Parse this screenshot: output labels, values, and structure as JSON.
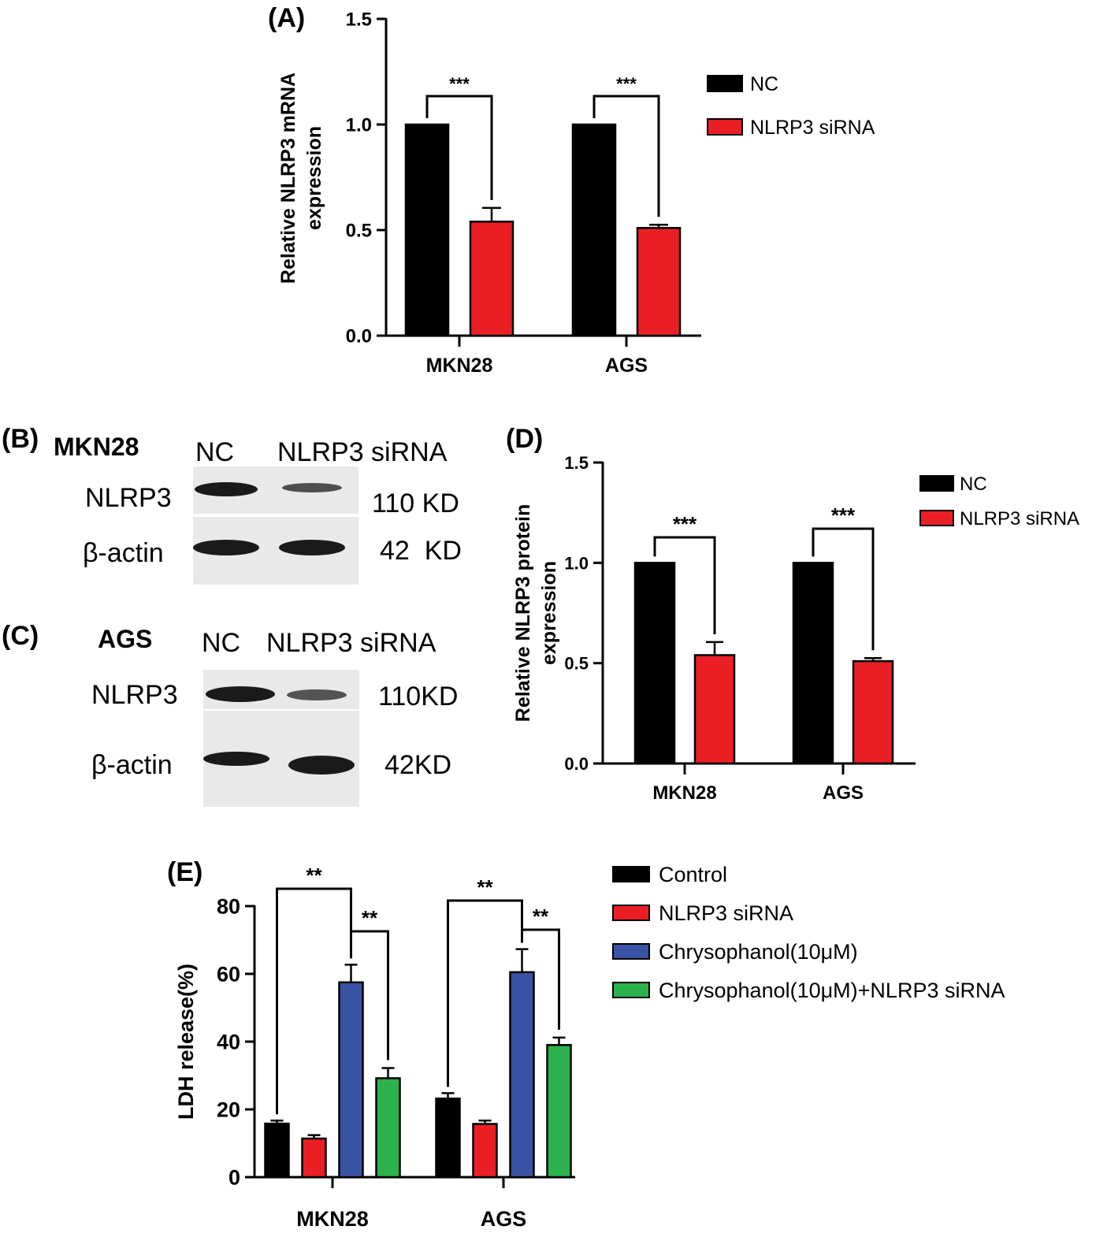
{
  "colors": {
    "black": "#000000",
    "red": "#ea1f26",
    "blue": "#3a53a4",
    "green": "#2bb24c",
    "blot_background": "#e9e9e9",
    "band": "#1a1a1a"
  },
  "panels": {
    "a": "(A)",
    "b": "(B)",
    "c": "(C)",
    "d": "(D)",
    "e": "(E)"
  },
  "blots": {
    "b": {
      "cell_line": "MKN28",
      "lane_labels": [
        "NC",
        "NLRP3 siRNA"
      ],
      "rows": [
        {
          "name": "NLRP3",
          "size": "110 KD",
          "intensities": [
            1.0,
            0.55
          ]
        },
        {
          "name": "β-actin",
          "size": "42  KD",
          "intensities": [
            1.0,
            1.0
          ]
        }
      ]
    },
    "c": {
      "cell_line": "AGS",
      "lane_labels": [
        "NC",
        "NLRP3 siRNA"
      ],
      "rows": [
        {
          "name": "NLRP3",
          "size": "110KD",
          "intensities": [
            1.0,
            0.5
          ]
        },
        {
          "name": "β-actin",
          "size": "42KD",
          "intensities": [
            0.95,
            1.0
          ]
        }
      ]
    }
  },
  "chart_data": [
    {
      "panel": "A",
      "type": "bar",
      "title": "",
      "xlabel": "",
      "ylabel": "Relative NLRP3 mRNA expression",
      "ylabel_lines": [
        "Relative NLRP3 mRNA",
        "expression"
      ],
      "ylim": [
        0,
        1.5
      ],
      "yticks": [
        "0.0",
        "0.5",
        "1.0",
        "1.5"
      ],
      "categories": [
        "MKN28",
        "AGS"
      ],
      "series": [
        {
          "name": "NC",
          "values": [
            1.0,
            1.0
          ],
          "errors": [
            0,
            0
          ]
        },
        {
          "name": "NLRP3 siRNA",
          "values": [
            0.54,
            0.51
          ],
          "errors": [
            0.065,
            0.015
          ]
        }
      ],
      "significance": [
        {
          "category": "MKN28",
          "label": "***"
        },
        {
          "category": "AGS",
          "label": "***"
        }
      ],
      "legend_position": "right",
      "grid": false
    },
    {
      "panel": "D",
      "type": "bar",
      "title": "",
      "xlabel": "",
      "ylabel": "Relative NLRP3 protein expression",
      "ylabel_lines": [
        "Relative NLRP3 protein",
        "expression"
      ],
      "ylim": [
        0,
        1.5
      ],
      "yticks": [
        "0.0",
        "0.5",
        "1.0",
        "1.5"
      ],
      "categories": [
        "MKN28",
        "AGS"
      ],
      "series": [
        {
          "name": "NC",
          "values": [
            1.0,
            1.0
          ],
          "errors": [
            0,
            0
          ]
        },
        {
          "name": "NLRP3 siRNA",
          "values": [
            0.54,
            0.51
          ],
          "errors": [
            0.065,
            0.015
          ]
        }
      ],
      "significance": [
        {
          "category": "MKN28",
          "label": "***"
        },
        {
          "category": "AGS",
          "label": "***"
        }
      ],
      "legend_position": "top-right",
      "grid": false
    },
    {
      "panel": "E",
      "type": "bar",
      "title": "",
      "xlabel": "",
      "ylabel": "LDH release(%)",
      "ylim": [
        0,
        80
      ],
      "yticks": [
        "0",
        "20",
        "40",
        "60",
        "80"
      ],
      "categories": [
        "MKN28",
        "AGS"
      ],
      "series": [
        {
          "name": "Control",
          "values": [
            15.8,
            23.2
          ],
          "errors": [
            0.9,
            1.6
          ]
        },
        {
          "name": "NLRP3 siRNA",
          "values": [
            11.4,
            15.7
          ],
          "errors": [
            1.0,
            1.0
          ]
        },
        {
          "name": "Chrysophanol(10μM)",
          "values": [
            57.5,
            60.5
          ],
          "errors": [
            5.2,
            6.8
          ]
        },
        {
          "name": "Chrysophanol(10μM)+NLRP3 siRNA",
          "values": [
            29.2,
            39.0
          ],
          "errors": [
            3.0,
            2.2
          ]
        }
      ],
      "significance": [
        {
          "category": "MKN28",
          "label": "**",
          "compare": [
            "Control",
            "Chrysophanol(10μM)"
          ]
        },
        {
          "category": "MKN28",
          "label": "**",
          "compare": [
            "Chrysophanol(10μM)",
            "Chrysophanol(10μM)+NLRP3 siRNA"
          ]
        },
        {
          "category": "AGS",
          "label": "**",
          "compare": [
            "Control",
            "Chrysophanol(10μM)"
          ]
        },
        {
          "category": "AGS",
          "label": "**",
          "compare": [
            "Chrysophanol(10μM)",
            "Chrysophanol(10μM)+NLRP3 siRNA"
          ]
        }
      ],
      "legend_position": "top-right",
      "grid": false
    }
  ]
}
